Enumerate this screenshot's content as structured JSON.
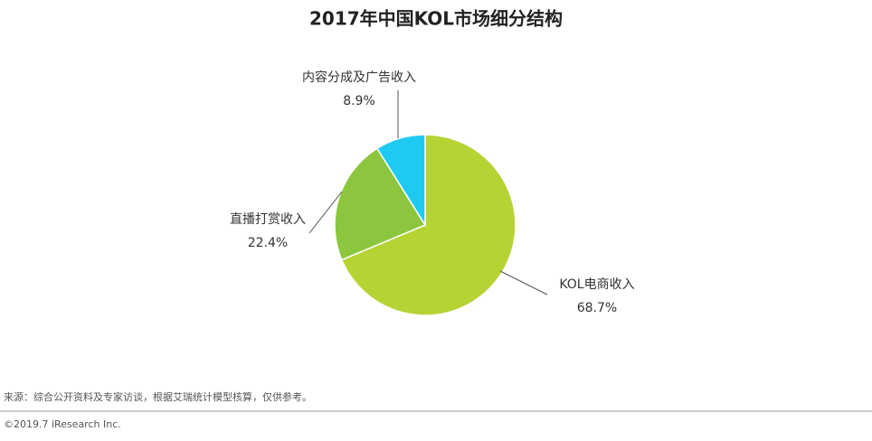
{
  "chart_data": {
    "type": "pie",
    "title": "2017年中国KOL市场细分结构",
    "categories": [
      "KOL电商收入",
      "直播打赏收入",
      "内容分成及广告收入"
    ],
    "values": [
      68.7,
      22.4,
      8.9
    ],
    "value_labels": [
      "68.7%",
      "22.4%",
      "8.9%"
    ],
    "colors": [
      "#b6d334",
      "#8cc63e",
      "#1fcaf2"
    ],
    "source": "来源：综合公开资料及专家访谈，根据艾瑞统计模型核算，仅供参考。",
    "copyright": "©2019.7 iResearch Inc."
  }
}
